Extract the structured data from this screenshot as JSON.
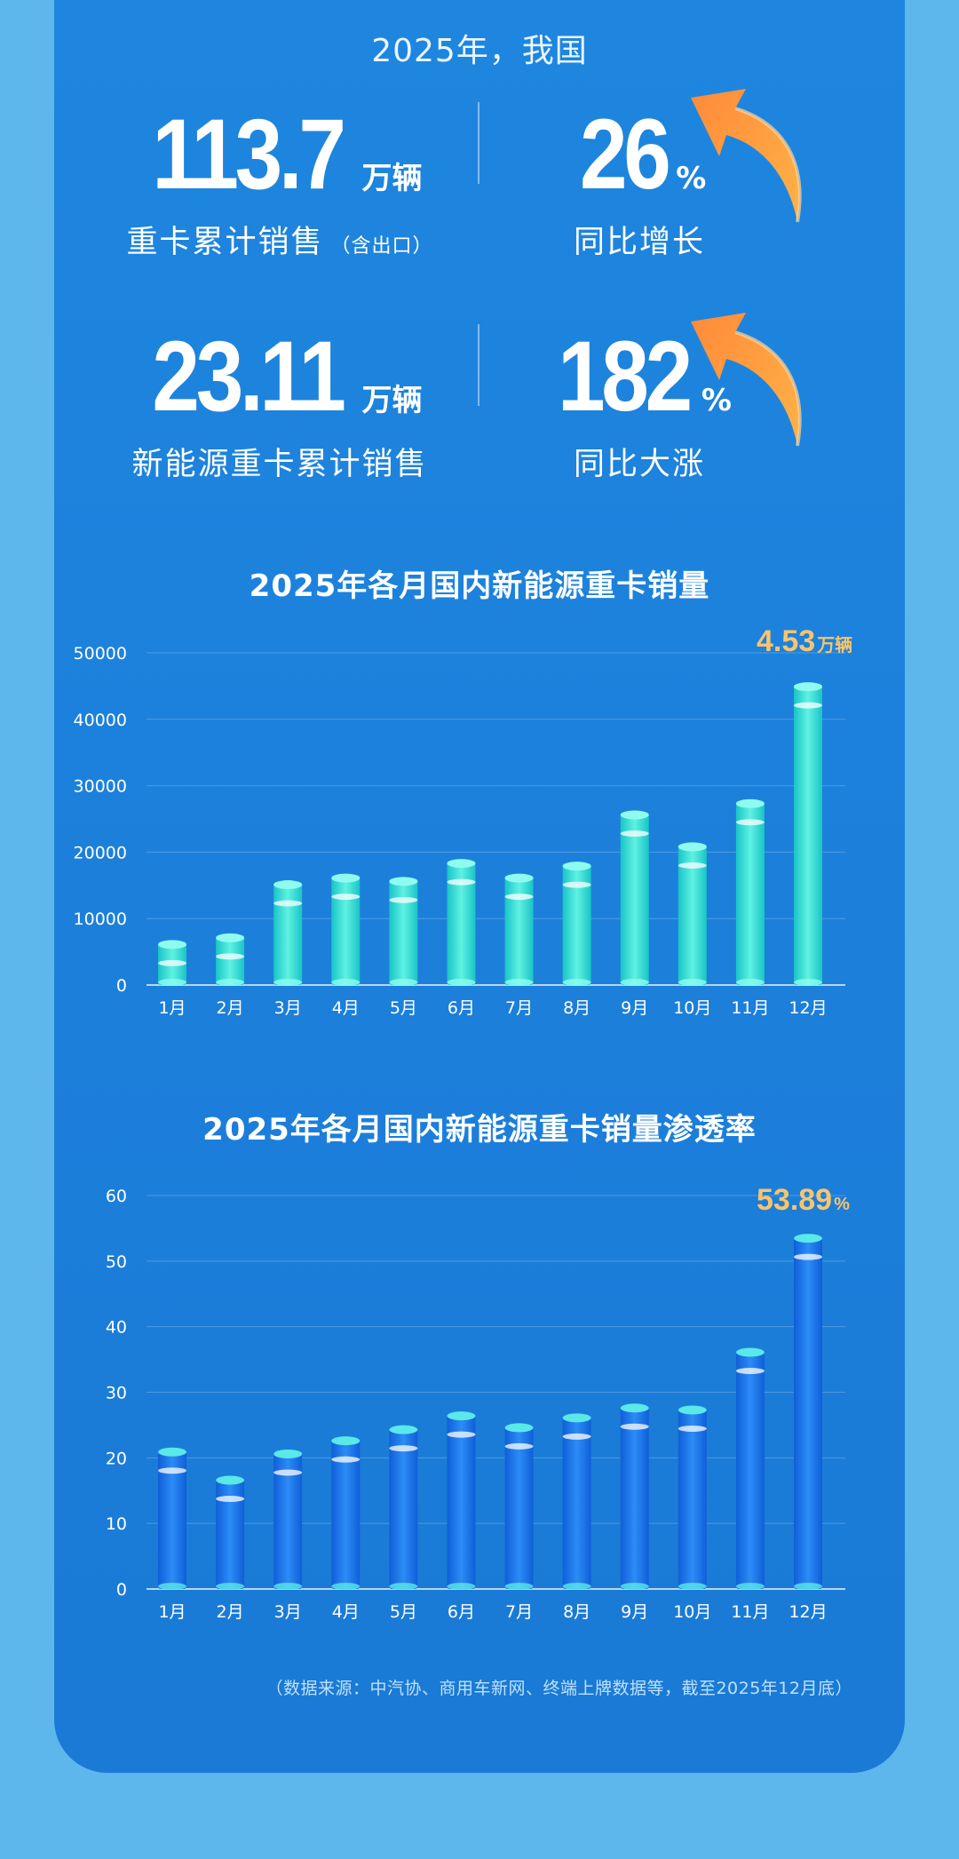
{
  "header": {
    "title": "2025年，我国"
  },
  "stats": [
    {
      "value": "113.7",
      "unit": "万辆",
      "label": "重卡累计销售",
      "note": "（含出口）"
    },
    {
      "value": "26",
      "unit": "%",
      "label": "同比增长"
    },
    {
      "value": "23.11",
      "unit": "万辆",
      "label": "新能源重卡累计销售"
    },
    {
      "value": "182",
      "unit": "%",
      "label": "同比大涨"
    }
  ],
  "icons": {
    "growth_arrow": "orange-curved-up-arrow-icon"
  },
  "colors": {
    "background": "#5db6ec",
    "panel": "#1c80db",
    "sales_bar": "#2fe0d6",
    "penetration_bar": "#1669e6",
    "highlight": "#f9c46b"
  },
  "chart_data": [
    {
      "type": "bar",
      "title": "2025年各月国内新能源重卡销量",
      "categories": [
        "1月",
        "2月",
        "3月",
        "4月",
        "5月",
        "6月",
        "7月",
        "8月",
        "9月",
        "10月",
        "11月",
        "12月"
      ],
      "values": [
        6500,
        7500,
        15500,
        16500,
        16000,
        18700,
        16500,
        18300,
        26000,
        21200,
        27700,
        45300
      ],
      "ylim": [
        0,
        50000
      ],
      "yticks": [
        0,
        10000,
        20000,
        30000,
        40000,
        50000
      ],
      "grid": true,
      "callout": {
        "value": "4.53",
        "unit": "万辆"
      }
    },
    {
      "type": "bar",
      "title": "2025年各月国内新能源重卡销量渗透率",
      "categories": [
        "1月",
        "2月",
        "3月",
        "4月",
        "5月",
        "6月",
        "7月",
        "8月",
        "9月",
        "10月",
        "11月",
        "12月"
      ],
      "values": [
        21.3,
        17.0,
        21.0,
        23.0,
        24.7,
        26.8,
        25.0,
        26.5,
        28.0,
        27.7,
        36.5,
        53.89
      ],
      "ylim": [
        0,
        60
      ],
      "yticks": [
        0,
        10,
        20,
        30,
        40,
        50,
        60
      ],
      "grid": true,
      "callout": {
        "value": "53.89",
        "unit": "%"
      }
    }
  ],
  "footer": {
    "source": "（数据来源：中汽协、商用车新网、终端上牌数据等，截至2025年12月底）"
  }
}
